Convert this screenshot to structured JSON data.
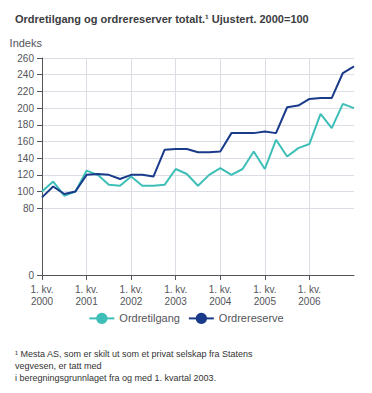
{
  "chart_data": {
    "type": "line",
    "title": "Ordretilgang og ordrereserver totalt.¹ Ujustert. 2000=100",
    "ylabel": "Indeks",
    "footnote": "¹ Mesta AS, som er skilt ut som et privat selskap fra Statens vegvesen, er tatt med\ni beregningsgrunnlaget fra og med 1. kvartal 2003.",
    "categories": [
      "1. kv.\n2000",
      null,
      null,
      null,
      "1. kv.\n2001",
      null,
      null,
      null,
      "1. kv.\n2002",
      null,
      null,
      null,
      "1. kv.\n2003",
      null,
      null,
      null,
      "1. kv.\n2004",
      null,
      null,
      null,
      "1. kv.\n2005",
      null,
      null,
      null,
      "1. kv.\n2006",
      null,
      null,
      null,
      null
    ],
    "series": [
      {
        "name": "Ordretilgang",
        "color": "#3dbfb8",
        "values": [
          100,
          112,
          95,
          100,
          125,
          120,
          108,
          107,
          118,
          107,
          107,
          108,
          127,
          121,
          107,
          120,
          128,
          120,
          127,
          148,
          127,
          162,
          142,
          152,
          157,
          193,
          176,
          205,
          200
        ]
      },
      {
        "name": "Ordrereserve",
        "color": "#1a3a8a",
        "values": [
          93,
          106,
          97,
          100,
          120,
          121,
          120,
          115,
          120,
          120,
          118,
          150,
          151,
          151,
          147,
          147,
          148,
          170,
          170,
          170,
          172,
          170,
          201,
          203,
          211,
          212,
          212,
          242,
          250
        ]
      }
    ],
    "ylim": [
      0,
      260
    ],
    "yticks": [
      0,
      80,
      100,
      120,
      140,
      160,
      180,
      200,
      220,
      240,
      260
    ],
    "grid": true,
    "legend": "bottom"
  }
}
